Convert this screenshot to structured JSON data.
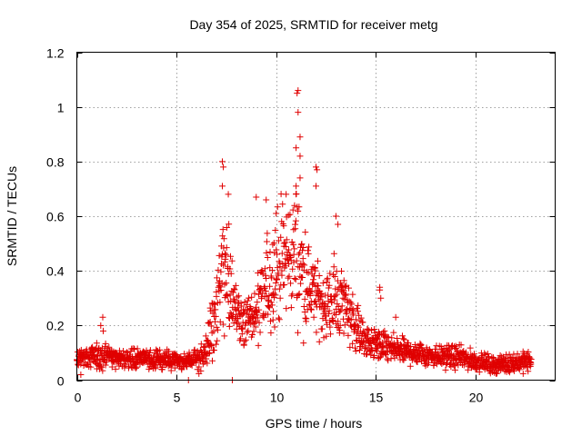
{
  "chart_data": {
    "type": "scatter",
    "title": "Day 354 of 2025, SRMTID for receiver metg",
    "xlabel": "GPS time / hours",
    "ylabel": "SRMTID / TECUs",
    "xlim": [
      0,
      24
    ],
    "ylim": [
      0,
      1.2
    ],
    "xticks": [
      0,
      5,
      10,
      15,
      20
    ],
    "xtick_labels": [
      "0",
      "5",
      "10",
      "15",
      "20"
    ],
    "yticks": [
      0,
      0.2,
      0.4,
      0.6,
      0.8,
      1,
      1.2
    ],
    "ytick_labels": [
      "0",
      "0.2",
      "0.4",
      "0.6",
      "0.8",
      "1",
      "1.2"
    ],
    "grid": true,
    "marker": "+",
    "marker_color": "#e00000",
    "series": [
      {
        "name": "SRMTID",
        "envelope": {
          "t": [
            0.0,
            0.5,
            1.0,
            1.3,
            1.6,
            2.0,
            3.0,
            4.0,
            5.0,
            5.5,
            6.0,
            6.5,
            7.0,
            7.3,
            7.6,
            8.0,
            8.5,
            9.0,
            9.5,
            10.0,
            10.5,
            11.0,
            11.5,
            12.0,
            12.5,
            13.0,
            13.5,
            14.0,
            14.5,
            15.0,
            15.5,
            16.0,
            17.0,
            18.0,
            19.0,
            20.0,
            21.0,
            22.0,
            22.8
          ],
          "mean": [
            0.085,
            0.085,
            0.085,
            0.12,
            0.085,
            0.08,
            0.08,
            0.075,
            0.07,
            0.07,
            0.075,
            0.11,
            0.25,
            0.4,
            0.35,
            0.25,
            0.22,
            0.23,
            0.33,
            0.42,
            0.44,
            0.48,
            0.36,
            0.3,
            0.27,
            0.3,
            0.28,
            0.2,
            0.14,
            0.13,
            0.12,
            0.11,
            0.1,
            0.09,
            0.085,
            0.07,
            0.055,
            0.065,
            0.07
          ],
          "spread": [
            0.03,
            0.03,
            0.035,
            0.06,
            0.035,
            0.03,
            0.03,
            0.03,
            0.025,
            0.025,
            0.035,
            0.06,
            0.12,
            0.22,
            0.16,
            0.1,
            0.08,
            0.1,
            0.15,
            0.17,
            0.18,
            0.2,
            0.15,
            0.1,
            0.1,
            0.12,
            0.1,
            0.08,
            0.05,
            0.05,
            0.05,
            0.04,
            0.04,
            0.035,
            0.035,
            0.03,
            0.025,
            0.03,
            0.03
          ]
        },
        "notable_points": [
          {
            "x": 11.1,
            "y": 1.06
          },
          {
            "x": 11.05,
            "y": 1.05
          },
          {
            "x": 11.1,
            "y": 0.98
          },
          {
            "x": 11.2,
            "y": 0.89
          },
          {
            "x": 11.0,
            "y": 0.85
          },
          {
            "x": 11.2,
            "y": 0.82
          },
          {
            "x": 7.3,
            "y": 0.8
          },
          {
            "x": 7.35,
            "y": 0.78
          },
          {
            "x": 12.0,
            "y": 0.78
          },
          {
            "x": 12.05,
            "y": 0.77
          },
          {
            "x": 11.2,
            "y": 0.74
          },
          {
            "x": 7.3,
            "y": 0.71
          },
          {
            "x": 11.0,
            "y": 0.71
          },
          {
            "x": 12.0,
            "y": 0.71
          },
          {
            "x": 7.6,
            "y": 0.68
          },
          {
            "x": 9.0,
            "y": 0.67
          },
          {
            "x": 10.5,
            "y": 0.68
          },
          {
            "x": 9.5,
            "y": 0.66
          },
          {
            "x": 10.0,
            "y": 0.61
          },
          {
            "x": 13.0,
            "y": 0.6
          },
          {
            "x": 13.1,
            "y": 0.57
          },
          {
            "x": 15.2,
            "y": 0.34
          },
          {
            "x": 15.2,
            "y": 0.33
          },
          {
            "x": 15.25,
            "y": 0.3
          },
          {
            "x": 1.3,
            "y": 0.23
          },
          {
            "x": 1.2,
            "y": 0.2
          },
          {
            "x": 16.0,
            "y": 0.23
          },
          {
            "x": 7.8,
            "y": 0.0
          },
          {
            "x": 5.6,
            "y": 0.0
          },
          {
            "x": 0.2,
            "y": 0.02
          }
        ]
      }
    ]
  }
}
